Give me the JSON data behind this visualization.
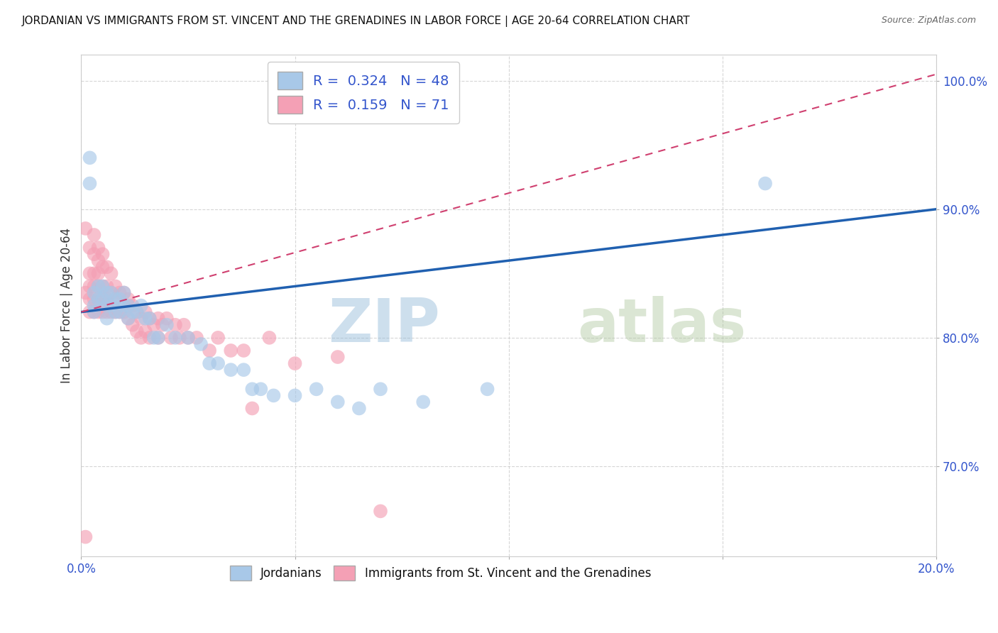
{
  "title": "JORDANIAN VS IMMIGRANTS FROM ST. VINCENT AND THE GRENADINES IN LABOR FORCE | AGE 20-64 CORRELATION CHART",
  "source": "Source: ZipAtlas.com",
  "xlabel": "",
  "ylabel": "In Labor Force | Age 20-64",
  "xlim": [
    0.0,
    0.2
  ],
  "ylim": [
    0.63,
    1.02
  ],
  "xticks": [
    0.0,
    0.05,
    0.1,
    0.15,
    0.2
  ],
  "xticklabels": [
    "0.0%",
    "",
    "",
    "",
    "20.0%"
  ],
  "yticks": [
    0.7,
    0.8,
    0.9,
    1.0
  ],
  "yticklabels": [
    "70.0%",
    "80.0%",
    "90.0%",
    "100.0%"
  ],
  "blue_color": "#a8c8e8",
  "pink_color": "#f4a0b5",
  "trend_blue": "#2060b0",
  "trend_pink": "#d04070",
  "R_blue": 0.324,
  "N_blue": 48,
  "R_pink": 0.159,
  "N_pink": 71,
  "legend_label_blue": "Jordanians",
  "legend_label_pink": "Immigrants from St. Vincent and the Grenadines",
  "watermark_zip": "ZIP",
  "watermark_atlas": "atlas",
  "blue_x": [
    0.002,
    0.002,
    0.003,
    0.003,
    0.003,
    0.004,
    0.004,
    0.005,
    0.005,
    0.006,
    0.006,
    0.006,
    0.007,
    0.007,
    0.008,
    0.008,
    0.009,
    0.009,
    0.01,
    0.01,
    0.011,
    0.011,
    0.012,
    0.013,
    0.014,
    0.015,
    0.016,
    0.017,
    0.018,
    0.02,
    0.022,
    0.025,
    0.028,
    0.03,
    0.032,
    0.035,
    0.038,
    0.04,
    0.042,
    0.045,
    0.05,
    0.055,
    0.06,
    0.065,
    0.07,
    0.08,
    0.095,
    0.16
  ],
  "blue_y": [
    0.94,
    0.92,
    0.835,
    0.825,
    0.82,
    0.84,
    0.83,
    0.84,
    0.83,
    0.835,
    0.825,
    0.815,
    0.835,
    0.825,
    0.83,
    0.82,
    0.83,
    0.82,
    0.835,
    0.825,
    0.825,
    0.815,
    0.82,
    0.82,
    0.825,
    0.815,
    0.815,
    0.8,
    0.8,
    0.81,
    0.8,
    0.8,
    0.795,
    0.78,
    0.78,
    0.775,
    0.775,
    0.76,
    0.76,
    0.755,
    0.755,
    0.76,
    0.75,
    0.745,
    0.76,
    0.75,
    0.76,
    0.92
  ],
  "pink_x": [
    0.001,
    0.001,
    0.001,
    0.002,
    0.002,
    0.002,
    0.002,
    0.002,
    0.003,
    0.003,
    0.003,
    0.003,
    0.003,
    0.003,
    0.004,
    0.004,
    0.004,
    0.004,
    0.004,
    0.004,
    0.005,
    0.005,
    0.005,
    0.005,
    0.005,
    0.006,
    0.006,
    0.006,
    0.006,
    0.007,
    0.007,
    0.007,
    0.008,
    0.008,
    0.008,
    0.009,
    0.009,
    0.01,
    0.01,
    0.011,
    0.011,
    0.012,
    0.012,
    0.013,
    0.013,
    0.014,
    0.014,
    0.015,
    0.015,
    0.016,
    0.016,
    0.017,
    0.018,
    0.018,
    0.019,
    0.02,
    0.021,
    0.022,
    0.023,
    0.024,
    0.025,
    0.027,
    0.03,
    0.032,
    0.035,
    0.038,
    0.04,
    0.044,
    0.05,
    0.06,
    0.07
  ],
  "pink_y": [
    0.885,
    0.835,
    0.645,
    0.87,
    0.85,
    0.84,
    0.83,
    0.82,
    0.88,
    0.865,
    0.85,
    0.84,
    0.83,
    0.82,
    0.87,
    0.86,
    0.85,
    0.84,
    0.83,
    0.82,
    0.865,
    0.855,
    0.84,
    0.83,
    0.82,
    0.855,
    0.84,
    0.83,
    0.82,
    0.85,
    0.835,
    0.82,
    0.84,
    0.83,
    0.82,
    0.835,
    0.82,
    0.835,
    0.82,
    0.83,
    0.815,
    0.825,
    0.81,
    0.82,
    0.805,
    0.815,
    0.8,
    0.82,
    0.805,
    0.815,
    0.8,
    0.81,
    0.815,
    0.8,
    0.81,
    0.815,
    0.8,
    0.81,
    0.8,
    0.81,
    0.8,
    0.8,
    0.79,
    0.8,
    0.79,
    0.79,
    0.745,
    0.8,
    0.78,
    0.785,
    0.665
  ],
  "trend_blue_x0": 0.0,
  "trend_blue_y0": 0.82,
  "trend_blue_x1": 0.2,
  "trend_blue_y1": 0.9,
  "trend_pink_x0": 0.0,
  "trend_pink_y0": 0.82,
  "trend_pink_x1": 0.2,
  "trend_pink_y1": 1.005
}
